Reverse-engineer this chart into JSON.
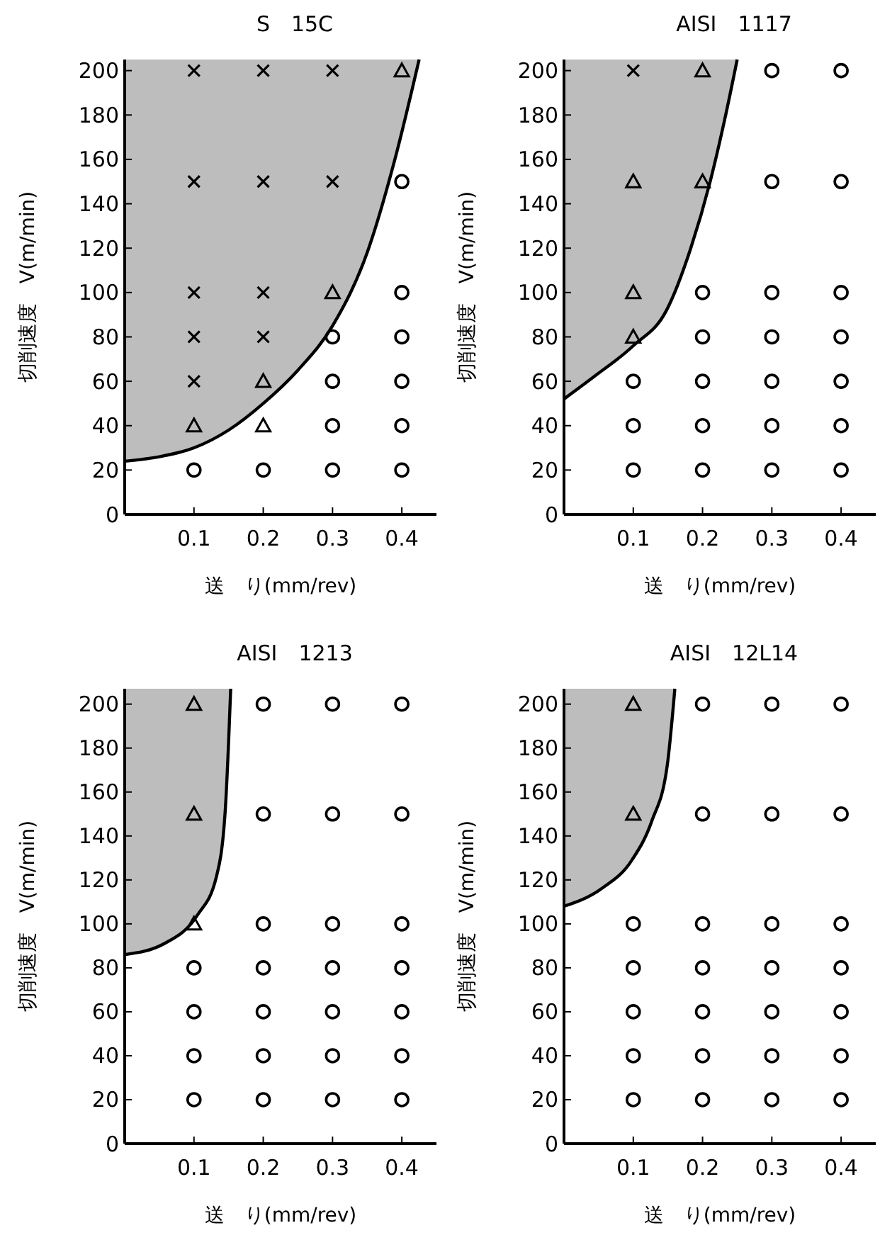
{
  "chart_data": [
    {
      "type": "scatter",
      "title": "S　15C",
      "xlabel": "送　り(mm/rev)",
      "ylabel": "切削速度　V(m/min)",
      "xlim": [
        0,
        0.45
      ],
      "ylim": [
        0,
        205
      ],
      "xticks": [
        0.1,
        0.2,
        0.3,
        0.4
      ],
      "yticks": [
        0,
        20,
        40,
        60,
        80,
        100,
        120,
        140,
        160,
        180,
        200
      ],
      "grid": false,
      "series": [
        {
          "type": "line",
          "color": "#000000",
          "marker": "none",
          "x": [
            0,
            0.05,
            0.1,
            0.15,
            0.2,
            0.25,
            0.3,
            0.35,
            0.39,
            0.425
          ],
          "values": [
            24,
            26,
            30,
            38,
            50,
            65,
            85,
            118,
            160,
            205
          ],
          "lower": [
            24,
            26,
            30,
            38,
            50,
            65,
            85,
            118,
            160,
            205
          ],
          "upper": [
            205,
            205,
            205,
            205,
            205,
            205,
            205,
            205,
            205,
            205
          ]
        },
        {
          "type": "scatter",
          "color": "#000000",
          "marker": "cross",
          "x": [
            0.1,
            0.2,
            0.3,
            0.1,
            0.2,
            0.3,
            0.1,
            0.2,
            0.1,
            0.2,
            0.1
          ],
          "values": [
            200,
            200,
            200,
            150,
            150,
            150,
            100,
            100,
            80,
            80,
            60
          ]
        },
        {
          "type": "scatter",
          "color": "#000000",
          "marker": "triangle",
          "x": [
            0.4,
            0.3,
            0.2,
            0.1,
            0.2
          ],
          "values": [
            200,
            100,
            60,
            40,
            40
          ]
        },
        {
          "type": "scatter",
          "color": "#000000",
          "marker": "circle",
          "x": [
            0.4,
            0.4,
            0.3,
            0.4,
            0.3,
            0.4,
            0.3,
            0.4,
            0.1,
            0.2,
            0.3,
            0.4
          ],
          "values": [
            150,
            100,
            80,
            80,
            60,
            60,
            40,
            40,
            20,
            20,
            20,
            20
          ]
        }
      ]
    },
    {
      "type": "scatter",
      "title": "AISI　1117",
      "xlabel": "送　り(mm/rev)",
      "ylabel": "切削速度　V(m/min)",
      "xlim": [
        0,
        0.45
      ],
      "ylim": [
        0,
        205
      ],
      "xticks": [
        0.1,
        0.2,
        0.3,
        0.4
      ],
      "yticks": [
        0,
        20,
        40,
        60,
        80,
        100,
        120,
        140,
        160,
        180,
        200
      ],
      "grid": false,
      "series": [
        {
          "type": "line",
          "color": "#000000",
          "marker": "none",
          "x": [
            0,
            0.043,
            0.1,
            0.148,
            0.183,
            0.211,
            0.232,
            0.25
          ],
          "values": [
            52,
            62,
            76,
            92,
            120,
            150,
            178,
            205
          ],
          "lower": [
            52,
            62,
            76,
            92,
            120,
            150,
            178,
            205
          ],
          "upper": [
            205,
            205,
            205,
            205,
            205,
            205,
            205,
            205
          ]
        },
        {
          "type": "scatter",
          "color": "#000000",
          "marker": "cross",
          "x": [
            0.1
          ],
          "values": [
            200
          ]
        },
        {
          "type": "scatter",
          "color": "#000000",
          "marker": "triangle",
          "x": [
            0.2,
            0.1,
            0.2,
            0.1,
            0.1
          ],
          "values": [
            200,
            150,
            150,
            100,
            80
          ]
        },
        {
          "type": "scatter",
          "color": "#000000",
          "marker": "circle",
          "x": [
            0.3,
            0.4,
            0.3,
            0.4,
            0.2,
            0.3,
            0.4,
            0.2,
            0.3,
            0.4,
            0.1,
            0.2,
            0.3,
            0.4,
            0.1,
            0.2,
            0.3,
            0.4,
            0.1,
            0.2,
            0.3,
            0.4
          ],
          "values": [
            200,
            200,
            150,
            150,
            100,
            100,
            100,
            80,
            80,
            80,
            60,
            60,
            60,
            60,
            40,
            40,
            40,
            40,
            20,
            20,
            20,
            20
          ]
        }
      ]
    },
    {
      "type": "scatter",
      "title": "AISI　1213",
      "xlabel": "送　り(mm/rev)",
      "ylabel": "切削速度　V(m/min)",
      "xlim": [
        0,
        0.45
      ],
      "ylim": [
        0,
        207
      ],
      "xticks": [
        0.1,
        0.2,
        0.3,
        0.4
      ],
      "yticks": [
        0,
        20,
        40,
        60,
        80,
        100,
        120,
        140,
        160,
        180,
        200
      ],
      "grid": false,
      "series": [
        {
          "type": "line",
          "color": "#000000",
          "marker": "none",
          "x": [
            0,
            0.057,
            0.105,
            0.132,
            0.145,
            0.15,
            0.153
          ],
          "values": [
            86,
            91,
            104,
            121,
            151,
            183,
            207
          ],
          "lower": [
            86,
            91,
            104,
            121,
            151,
            183,
            207
          ],
          "upper": [
            207,
            207,
            207,
            207,
            207,
            207,
            207
          ]
        },
        {
          "type": "scatter",
          "color": "#000000",
          "marker": "triangle",
          "x": [
            0.1,
            0.1,
            0.1
          ],
          "values": [
            200,
            150,
            100
          ]
        },
        {
          "type": "scatter",
          "color": "#000000",
          "marker": "circle",
          "x": [
            0.2,
            0.3,
            0.4,
            0.2,
            0.3,
            0.4,
            0.2,
            0.3,
            0.4,
            0.1,
            0.2,
            0.3,
            0.4,
            0.1,
            0.2,
            0.3,
            0.4,
            0.1,
            0.2,
            0.3,
            0.4,
            0.1,
            0.2,
            0.3,
            0.4
          ],
          "values": [
            200,
            200,
            200,
            150,
            150,
            150,
            100,
            100,
            100,
            80,
            80,
            80,
            80,
            60,
            60,
            60,
            60,
            40,
            40,
            40,
            40,
            20,
            20,
            20,
            20
          ]
        }
      ]
    },
    {
      "type": "scatter",
      "title": "AISI　12L14",
      "xlabel": "送　り(mm/rev)",
      "ylabel": "切削速度　V(m/min)",
      "xlim": [
        0,
        0.45
      ],
      "ylim": [
        0,
        207
      ],
      "xticks": [
        0.1,
        0.2,
        0.3,
        0.4
      ],
      "yticks": [
        0,
        20,
        40,
        60,
        80,
        100,
        120,
        140,
        160,
        180,
        200
      ],
      "grid": false,
      "series": [
        {
          "type": "line",
          "color": "#000000",
          "marker": "none",
          "x": [
            0,
            0.054,
            0.098,
            0.127,
            0.149,
            0.16
          ],
          "values": [
            108,
            116,
            129,
            147,
            172,
            207
          ],
          "lower": [
            108,
            116,
            129,
            147,
            172,
            207
          ],
          "upper": [
            207,
            207,
            207,
            207,
            207,
            207
          ]
        },
        {
          "type": "scatter",
          "color": "#000000",
          "marker": "triangle",
          "x": [
            0.1,
            0.1
          ],
          "values": [
            200,
            150
          ]
        },
        {
          "type": "scatter",
          "color": "#000000",
          "marker": "circle",
          "x": [
            0.2,
            0.3,
            0.4,
            0.2,
            0.3,
            0.4,
            0.1,
            0.2,
            0.3,
            0.4,
            0.1,
            0.2,
            0.3,
            0.4,
            0.1,
            0.2,
            0.3,
            0.4,
            0.1,
            0.2,
            0.3,
            0.4,
            0.1,
            0.2,
            0.3,
            0.4
          ],
          "values": [
            200,
            200,
            200,
            150,
            150,
            150,
            100,
            100,
            100,
            100,
            80,
            80,
            80,
            80,
            60,
            60,
            60,
            60,
            40,
            40,
            40,
            40,
            20,
            20,
            20,
            20
          ]
        }
      ]
    }
  ]
}
